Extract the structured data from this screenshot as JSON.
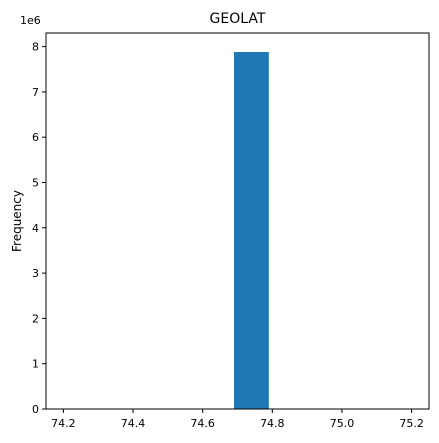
{
  "chart_data": {
    "type": "bar",
    "title": "GEOLAT",
    "xlabel": "",
    "ylabel": "Frequency",
    "y_scale_label": "1e6",
    "xlim": [
      74.15,
      75.25
    ],
    "ylim": [
      0,
      8.3
    ],
    "grid": false,
    "x_ticks": [
      74.2,
      74.4,
      74.6,
      74.8,
      75.0,
      75.2
    ],
    "x_tick_labels": [
      "74.2",
      "74.4",
      "74.6",
      "74.8",
      "75.0",
      "75.2"
    ],
    "y_ticks": [
      0,
      1,
      2,
      3,
      4,
      5,
      6,
      7,
      8
    ],
    "y_tick_labels": [
      "0",
      "1",
      "2",
      "3",
      "4",
      "5",
      "6",
      "7",
      "8"
    ],
    "bars": [
      {
        "x0": 74.69,
        "x1": 74.79,
        "value": 7.88
      }
    ],
    "colors": {
      "bar": "#1f77b4",
      "axes": "#000000",
      "background": "#ffffff"
    }
  }
}
